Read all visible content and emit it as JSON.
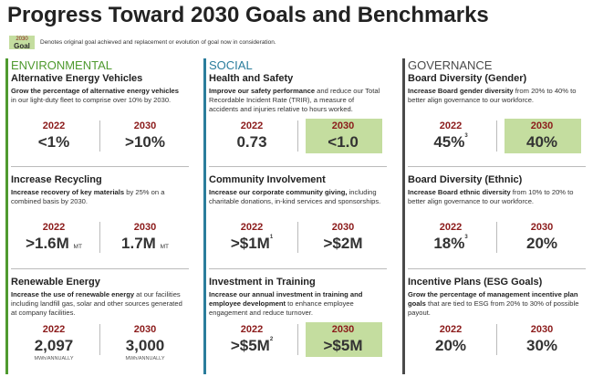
{
  "title": "Progress Toward 2030 Goals and Benchmarks",
  "legend": {
    "badge_year": "2030",
    "badge_word": "Goal",
    "text": "Denotes original goal achieved and replacement or evolution of goal now in consideration.",
    "highlight_color": "#c4dd9f"
  },
  "columns": [
    {
      "heading": "ENVIRONMENTAL",
      "color": "#4f9a2f",
      "items": [
        {
          "title": "Alternative Energy Vehicles",
          "desc": [
            {
              "text": "Grow the percentage of alternative energy vehicles",
              "bold": true
            },
            {
              "text": " in our light-duty fleet to comprise over 10% by 2030.",
              "bold": false
            }
          ],
          "cells": [
            {
              "year": "2022",
              "value": "<1%"
            },
            {
              "year": "2030",
              "value": ">10%"
            }
          ]
        },
        {
          "title": "Increase Recycling",
          "desc": [
            {
              "text": "Increase recovery of key materials",
              "bold": true
            },
            {
              "text": " by 25% on a combined basis by 2030.",
              "bold": false
            }
          ],
          "cells": [
            {
              "year": "2022",
              "value": ">1.6M",
              "unit": "MT"
            },
            {
              "year": "2030",
              "value": "1.7M",
              "unit": "MT"
            }
          ]
        },
        {
          "title": "Renewable Energy",
          "desc": [
            {
              "text": "Increase the use of renewable energy",
              "bold": true
            },
            {
              "text": " at our facilities including landfill gas, solar and other sources generated at company facilities.",
              "bold": false
            }
          ],
          "cells": [
            {
              "year": "2022",
              "value": "2,097",
              "note": "MWh/ANNUALLY"
            },
            {
              "year": "2030",
              "value": "3,000",
              "note": "MWh/ANNUALLY"
            }
          ]
        }
      ]
    },
    {
      "heading": "SOCIAL",
      "color": "#2b7d9c",
      "items": [
        {
          "title": "Health and Safety",
          "desc": [
            {
              "text": "Improve our safety performance",
              "bold": true
            },
            {
              "text": " and reduce our Total Recordable Incident Rate (TRIR), a measure of accidents and injuries relative to hours worked.",
              "bold": false
            }
          ],
          "cells": [
            {
              "year": "2022",
              "value": "0.73"
            },
            {
              "year": "2030",
              "value": "<1.0",
              "highlight": true
            }
          ]
        },
        {
          "title": "Community Involvement",
          "desc": [
            {
              "text": "Increase our corporate community giving,",
              "bold": true
            },
            {
              "text": " including charitable donations, in-kind services and sponsorships.",
              "bold": false
            }
          ],
          "cells": [
            {
              "year": "2022",
              "value": ">$1M",
              "sup": "1"
            },
            {
              "year": "2030",
              "value": ">$2M"
            }
          ]
        },
        {
          "title": "Investment in Training",
          "desc": [
            {
              "text": "Increase our annual investment in training and employee development",
              "bold": true
            },
            {
              "text": " to enhance employee engagement and reduce turnover.",
              "bold": false
            }
          ],
          "cells": [
            {
              "year": "2022",
              "value": ">$5M",
              "sup": "2"
            },
            {
              "year": "2030",
              "value": ">$5M",
              "highlight": true
            }
          ]
        }
      ]
    },
    {
      "heading": "GOVERNANCE",
      "color": "#4a4a4a",
      "items": [
        {
          "title": "Board Diversity (Gender)",
          "desc": [
            {
              "text": "Increase Board gender diversity",
              "bold": true
            },
            {
              "text": " from 20% to 40% to better align governance to our workforce.",
              "bold": false
            }
          ],
          "cells": [
            {
              "year": "2022",
              "value": "45%",
              "sup": "3"
            },
            {
              "year": "2030",
              "value": "40%",
              "highlight": true
            }
          ]
        },
        {
          "title": "Board Diversity (Ethnic)",
          "desc": [
            {
              "text": "Increase Board ethnic diversity",
              "bold": true
            },
            {
              "text": " from 10% to 20% to better align governance to our workforce.",
              "bold": false
            }
          ],
          "cells": [
            {
              "year": "2022",
              "value": "18%",
              "sup": "3"
            },
            {
              "year": "2030",
              "value": "20%"
            }
          ]
        },
        {
          "title": "Incentive Plans (ESG Goals)",
          "desc": [
            {
              "text": "Grow the percentage of management incentive plan goals",
              "bold": true
            },
            {
              "text": " that are tied to ESG from 20% to 30% of possible payout.",
              "bold": false
            }
          ],
          "cells": [
            {
              "year": "2022",
              "value": "20%"
            },
            {
              "year": "2030",
              "value": "30%"
            }
          ]
        }
      ]
    }
  ]
}
